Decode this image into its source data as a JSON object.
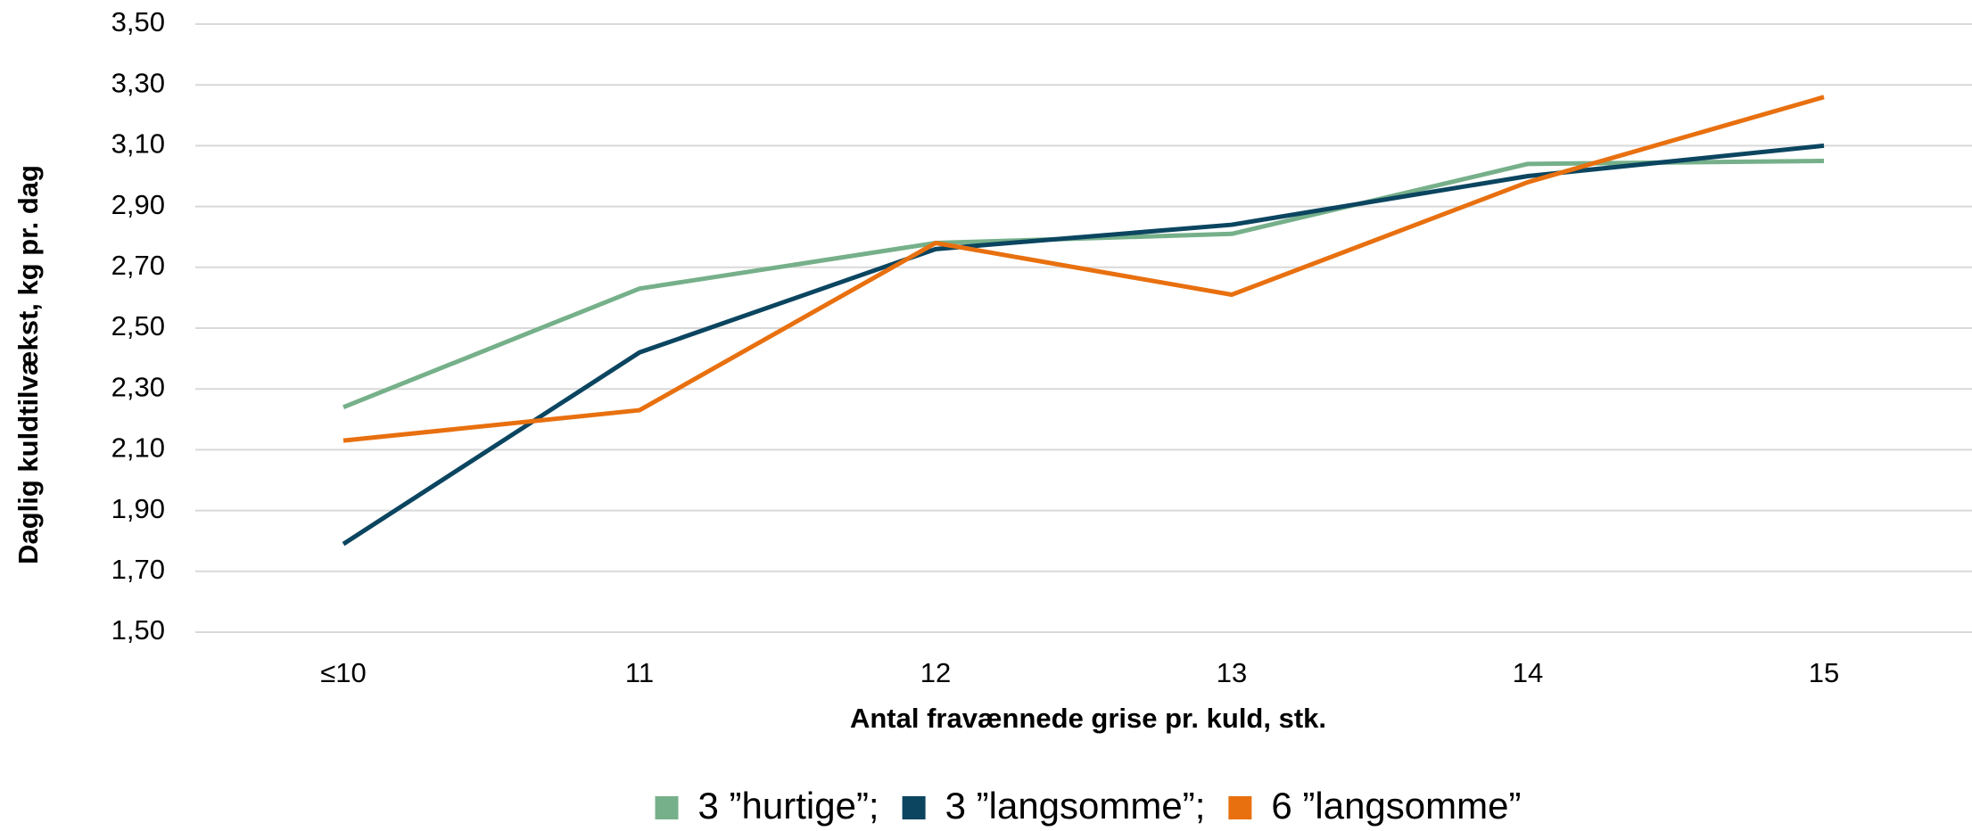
{
  "chart_data": {
    "type": "line",
    "x_label": "Antal fravænnede grise pr. kuld, stk.",
    "y_label": "Daglig kuldtilvækst, kg pr. dag",
    "categories": [
      "≤10",
      "11",
      "12",
      "13",
      "14",
      "15"
    ],
    "series": [
      {
        "name": "3 ”hurtige”;",
        "color": "#76b08a",
        "values": [
          2.24,
          2.63,
          2.78,
          2.81,
          3.04,
          3.05
        ]
      },
      {
        "name": "3 ”langsomme”;",
        "color": "#0b4560",
        "values": [
          1.79,
          2.42,
          2.76,
          2.84,
          3.0,
          3.1
        ]
      },
      {
        "name": "6 ”langsomme”",
        "color": "#e8700f",
        "values": [
          2.13,
          2.23,
          2.78,
          2.61,
          2.98,
          3.26
        ]
      }
    ],
    "ylim": [
      1.5,
      3.5
    ],
    "yticks": [
      {
        "value": 1.5,
        "label": "1,50"
      },
      {
        "value": 1.7,
        "label": "1,70"
      },
      {
        "value": 1.9,
        "label": "1,90"
      },
      {
        "value": 2.1,
        "label": "2,10"
      },
      {
        "value": 2.3,
        "label": "2,30"
      },
      {
        "value": 2.5,
        "label": "2,50"
      },
      {
        "value": 2.7,
        "label": "2,70"
      },
      {
        "value": 2.9,
        "label": "2,90"
      },
      {
        "value": 3.1,
        "label": "3,10"
      },
      {
        "value": 3.3,
        "label": "3,30"
      },
      {
        "value": 3.5,
        "label": "3,50"
      }
    ],
    "grid": true,
    "legend": "bottom"
  }
}
